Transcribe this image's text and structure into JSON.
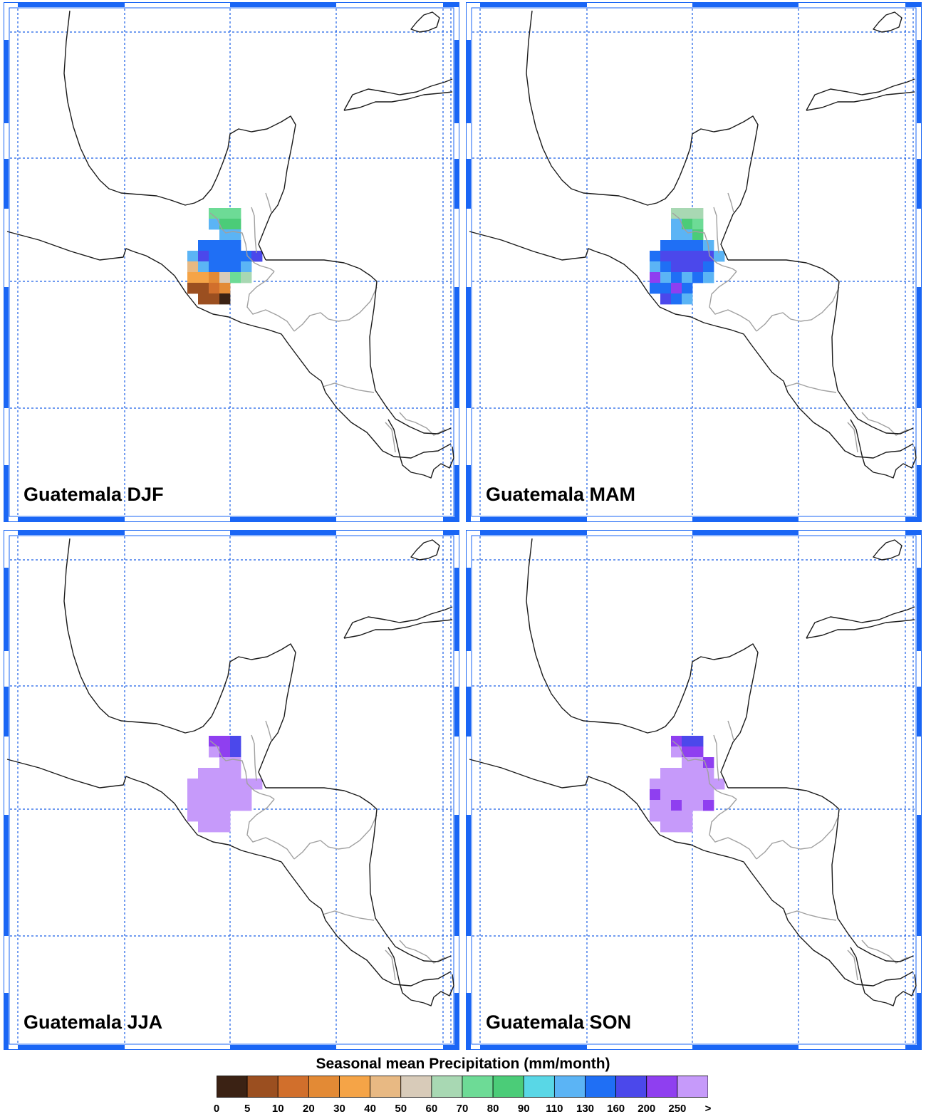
{
  "panels": [
    {
      "title": "Guatemala DJF",
      "season": "DJF",
      "cells": [
        [
          2,
          0,
          "70"
        ],
        [
          3,
          0,
          "70"
        ],
        [
          4,
          0,
          "70"
        ],
        [
          2,
          1,
          "110"
        ],
        [
          3,
          1,
          "80"
        ],
        [
          4,
          1,
          "80"
        ],
        [
          3,
          2,
          "110"
        ],
        [
          4,
          2,
          "110"
        ],
        [
          1,
          3,
          "130"
        ],
        [
          2,
          3,
          "130"
        ],
        [
          3,
          3,
          "130"
        ],
        [
          4,
          3,
          "130"
        ],
        [
          0,
          4,
          "110"
        ],
        [
          1,
          4,
          "160"
        ],
        [
          2,
          4,
          "130"
        ],
        [
          3,
          4,
          "130"
        ],
        [
          4,
          4,
          "130"
        ],
        [
          5,
          4,
          "130"
        ],
        [
          6,
          4,
          "160"
        ],
        [
          0,
          5,
          "40"
        ],
        [
          1,
          5,
          "110"
        ],
        [
          2,
          5,
          "130"
        ],
        [
          3,
          5,
          "130"
        ],
        [
          4,
          5,
          "130"
        ],
        [
          5,
          5,
          "110"
        ],
        [
          0,
          6,
          "30"
        ],
        [
          1,
          6,
          "30"
        ],
        [
          2,
          6,
          "20"
        ],
        [
          3,
          6,
          "50"
        ],
        [
          4,
          6,
          "70"
        ],
        [
          5,
          6,
          "60"
        ],
        [
          0,
          7,
          "5"
        ],
        [
          1,
          7,
          "5"
        ],
        [
          2,
          7,
          "10"
        ],
        [
          3,
          7,
          "20"
        ],
        [
          1,
          8,
          "5"
        ],
        [
          2,
          8,
          "5"
        ],
        [
          3,
          8,
          "0"
        ]
      ]
    },
    {
      "title": "Guatemala MAM",
      "season": "MAM",
      "cells": [
        [
          2,
          0,
          "60"
        ],
        [
          3,
          0,
          "60"
        ],
        [
          4,
          0,
          "60"
        ],
        [
          2,
          1,
          "110"
        ],
        [
          3,
          1,
          "80"
        ],
        [
          4,
          1,
          "70"
        ],
        [
          2,
          2,
          "110"
        ],
        [
          3,
          2,
          "110"
        ],
        [
          4,
          2,
          "80"
        ],
        [
          1,
          3,
          "130"
        ],
        [
          2,
          3,
          "130"
        ],
        [
          3,
          3,
          "130"
        ],
        [
          4,
          3,
          "130"
        ],
        [
          5,
          3,
          "110"
        ],
        [
          0,
          4,
          "130"
        ],
        [
          1,
          4,
          "160"
        ],
        [
          2,
          4,
          "160"
        ],
        [
          3,
          4,
          "160"
        ],
        [
          4,
          4,
          "160"
        ],
        [
          5,
          4,
          "160"
        ],
        [
          6,
          4,
          "110"
        ],
        [
          0,
          5,
          "110"
        ],
        [
          1,
          5,
          "130"
        ],
        [
          2,
          5,
          "160"
        ],
        [
          3,
          5,
          "160"
        ],
        [
          4,
          5,
          "160"
        ],
        [
          5,
          5,
          "130"
        ],
        [
          0,
          6,
          "200"
        ],
        [
          1,
          6,
          "110"
        ],
        [
          2,
          6,
          "130"
        ],
        [
          3,
          6,
          "110"
        ],
        [
          4,
          6,
          "130"
        ],
        [
          5,
          6,
          "110"
        ],
        [
          0,
          7,
          "130"
        ],
        [
          1,
          7,
          "130"
        ],
        [
          2,
          7,
          "200"
        ],
        [
          3,
          7,
          "130"
        ],
        [
          1,
          8,
          "160"
        ],
        [
          2,
          8,
          "130"
        ],
        [
          3,
          8,
          "110"
        ]
      ]
    },
    {
      "title": "Guatemala JJA",
      "season": "JJA",
      "cells": [
        [
          2,
          0,
          "200"
        ],
        [
          3,
          0,
          "200"
        ],
        [
          4,
          0,
          "160"
        ],
        [
          2,
          1,
          "250"
        ],
        [
          3,
          1,
          "200"
        ],
        [
          4,
          1,
          "160"
        ],
        [
          3,
          2,
          "250"
        ],
        [
          4,
          2,
          "250"
        ],
        [
          1,
          3,
          "250"
        ],
        [
          2,
          3,
          "250"
        ],
        [
          3,
          3,
          "250"
        ],
        [
          4,
          3,
          "250"
        ],
        [
          0,
          4,
          "250"
        ],
        [
          1,
          4,
          "250"
        ],
        [
          2,
          4,
          "250"
        ],
        [
          3,
          4,
          "250"
        ],
        [
          4,
          4,
          "250"
        ],
        [
          5,
          4,
          "250"
        ],
        [
          6,
          4,
          "250"
        ],
        [
          0,
          5,
          "250"
        ],
        [
          1,
          5,
          "250"
        ],
        [
          2,
          5,
          "250"
        ],
        [
          3,
          5,
          "250"
        ],
        [
          4,
          5,
          "250"
        ],
        [
          5,
          5,
          "250"
        ],
        [
          0,
          6,
          "250"
        ],
        [
          1,
          6,
          "250"
        ],
        [
          2,
          6,
          "250"
        ],
        [
          3,
          6,
          "250"
        ],
        [
          4,
          6,
          "250"
        ],
        [
          5,
          6,
          "250"
        ],
        [
          0,
          7,
          "250"
        ],
        [
          1,
          7,
          "250"
        ],
        [
          2,
          7,
          "250"
        ],
        [
          3,
          7,
          "250"
        ],
        [
          1,
          8,
          "250"
        ],
        [
          2,
          8,
          "250"
        ],
        [
          3,
          8,
          "250"
        ]
      ]
    },
    {
      "title": "Guatemala SON",
      "season": "SON",
      "cells": [
        [
          2,
          0,
          "200"
        ],
        [
          3,
          0,
          "160"
        ],
        [
          4,
          0,
          "160"
        ],
        [
          2,
          1,
          "250"
        ],
        [
          3,
          1,
          "200"
        ],
        [
          4,
          1,
          "200"
        ],
        [
          3,
          2,
          "250"
        ],
        [
          4,
          2,
          "250"
        ],
        [
          5,
          2,
          "200"
        ],
        [
          1,
          3,
          "250"
        ],
        [
          2,
          3,
          "250"
        ],
        [
          3,
          3,
          "250"
        ],
        [
          4,
          3,
          "250"
        ],
        [
          5,
          3,
          "250"
        ],
        [
          0,
          4,
          "250"
        ],
        [
          1,
          4,
          "250"
        ],
        [
          2,
          4,
          "250"
        ],
        [
          3,
          4,
          "250"
        ],
        [
          4,
          4,
          "250"
        ],
        [
          5,
          4,
          "250"
        ],
        [
          6,
          4,
          "250"
        ],
        [
          0,
          5,
          "200"
        ],
        [
          1,
          5,
          "250"
        ],
        [
          2,
          5,
          "250"
        ],
        [
          3,
          5,
          "250"
        ],
        [
          4,
          5,
          "250"
        ],
        [
          5,
          5,
          "250"
        ],
        [
          0,
          6,
          "250"
        ],
        [
          1,
          6,
          "250"
        ],
        [
          2,
          6,
          "200"
        ],
        [
          3,
          6,
          "250"
        ],
        [
          4,
          6,
          "250"
        ],
        [
          5,
          6,
          "200"
        ],
        [
          0,
          7,
          "250"
        ],
        [
          1,
          7,
          "250"
        ],
        [
          2,
          7,
          "250"
        ],
        [
          3,
          7,
          "250"
        ],
        [
          1,
          8,
          "250"
        ],
        [
          2,
          8,
          "250"
        ],
        [
          3,
          8,
          "250"
        ]
      ]
    }
  ],
  "legend": {
    "title": "Seasonal mean Precipitation (mm/month)",
    "ticks": [
      "0",
      "5",
      "10",
      "20",
      "30",
      "40",
      "50",
      "60",
      "70",
      "80",
      "90",
      "110",
      "130",
      "160",
      "200",
      "250",
      ">"
    ],
    "colors": [
      "#3b2214",
      "#9b4f20",
      "#d16f2c",
      "#e38a35",
      "#f5a447",
      "#e8b983",
      "#d8cbb9",
      "#a8d8b3",
      "#6ddb96",
      "#4bcc78",
      "#59d7e6",
      "#5bb4f5",
      "#1f6ff5",
      "#4b48eb",
      "#8f3ff0",
      "#c69afa"
    ]
  },
  "colors": {
    "grid": "#1a5fe6",
    "frame_blue": "#1a66f5",
    "coast": "#1a1a1a",
    "border": "#a0a0a0"
  }
}
